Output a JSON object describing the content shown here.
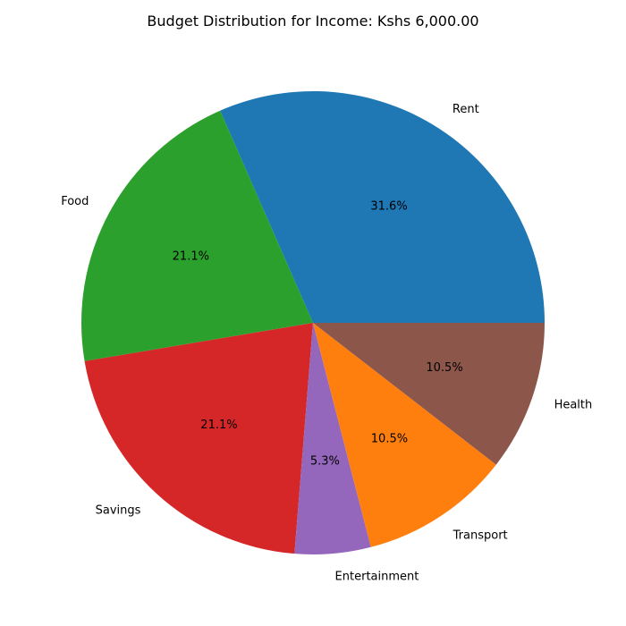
{
  "chart_data": {
    "type": "pie",
    "title": "Budget Distribution for Income: Kshs 6,000.00",
    "start_angle_deg": 0,
    "direction": "counterclockwise",
    "slices": [
      {
        "label": "Rent",
        "value": 31.6,
        "pct_label": "31.6%",
        "color": "#1f77b4"
      },
      {
        "label": "Food",
        "value": 21.1,
        "pct_label": "21.1%",
        "color": "#2ca02c"
      },
      {
        "label": "Savings",
        "value": 21.1,
        "pct_label": "21.1%",
        "color": "#d62728"
      },
      {
        "label": "Entertainment",
        "value": 5.3,
        "pct_label": "5.3%",
        "color": "#9467bd"
      },
      {
        "label": "Transport",
        "value": 10.5,
        "pct_label": "10.5%",
        "color": "#ff7f0e"
      },
      {
        "label": "Health",
        "value": 10.5,
        "pct_label": "10.5%",
        "color": "#8c564b"
      }
    ]
  }
}
